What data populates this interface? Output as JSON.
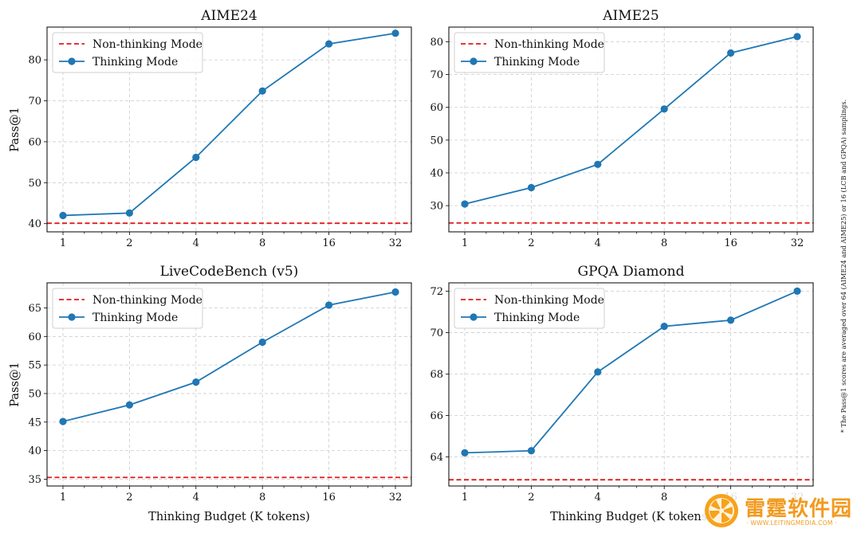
{
  "figure": {
    "footnote": "* The Pass@1 scores are averaged over 64 (AIME24 and AIME25) or 16 (LCB and GPQA) samplings.",
    "colors": {
      "thinking": "#1f77b4",
      "non_thinking": "#e31a1c",
      "grid": "#cccccc"
    }
  },
  "watermark": {
    "text_cn": "雷霆软件园",
    "text_en": "· WWW.LEITINGMEDIA.COM ·"
  },
  "chart_data": [
    {
      "type": "line",
      "title": "AIME24",
      "xlabel": "",
      "ylabel": "Pass@1",
      "x": [
        "1",
        "2",
        "4",
        "8",
        "16",
        "32"
      ],
      "x_scale": "log2",
      "ylim": [
        38,
        88
      ],
      "yticks": [
        40,
        50,
        60,
        70,
        80
      ],
      "grid": true,
      "legend": "top-left",
      "series": [
        {
          "name": "Non-thinking Mode",
          "kind": "hline",
          "value": 40.1,
          "style": "dashed",
          "color": "#e31a1c"
        },
        {
          "name": "Thinking Mode",
          "kind": "line",
          "values": [
            42.0,
            42.6,
            56.2,
            72.4,
            83.9,
            86.5
          ],
          "color": "#1f77b4"
        }
      ]
    },
    {
      "type": "line",
      "title": "AIME25",
      "xlabel": "",
      "ylabel": "",
      "x": [
        "1",
        "2",
        "4",
        "8",
        "16",
        "32"
      ],
      "x_scale": "log2",
      "ylim": [
        22,
        84.5
      ],
      "yticks": [
        30,
        40,
        50,
        60,
        70,
        80
      ],
      "grid": true,
      "legend": "top-left",
      "series": [
        {
          "name": "Non-thinking Mode",
          "kind": "hline",
          "value": 24.7,
          "style": "dashed",
          "color": "#e31a1c"
        },
        {
          "name": "Thinking Mode",
          "kind": "line",
          "values": [
            30.5,
            35.5,
            42.6,
            59.5,
            76.6,
            81.6
          ],
          "color": "#1f77b4"
        }
      ]
    },
    {
      "type": "line",
      "title": "LiveCodeBench (v5)",
      "xlabel": "Thinking Budget (K tokens)",
      "ylabel": "Pass@1",
      "x": [
        "1",
        "2",
        "4",
        "8",
        "16",
        "32"
      ],
      "x_scale": "log2",
      "ylim": [
        33.8,
        69.4
      ],
      "yticks": [
        35,
        40,
        45,
        50,
        55,
        60,
        65
      ],
      "grid": true,
      "legend": "top-left",
      "series": [
        {
          "name": "Non-thinking Mode",
          "kind": "hline",
          "value": 35.3,
          "style": "dashed",
          "color": "#e31a1c"
        },
        {
          "name": "Thinking Mode",
          "kind": "line",
          "values": [
            45.1,
            48.0,
            52.0,
            59.0,
            65.5,
            67.8
          ],
          "color": "#1f77b4"
        }
      ]
    },
    {
      "type": "line",
      "title": "GPQA Diamond",
      "xlabel": "Thinking Budget (K tokens)",
      "ylabel": "",
      "x": [
        "1",
        "2",
        "4",
        "8",
        "16",
        "32"
      ],
      "x_scale": "log2",
      "ylim": [
        62.6,
        72.4
      ],
      "yticks": [
        64,
        66,
        68,
        70,
        72
      ],
      "grid": true,
      "legend": "top-left",
      "series": [
        {
          "name": "Non-thinking Mode",
          "kind": "hline",
          "value": 62.9,
          "style": "dashed",
          "color": "#e31a1c"
        },
        {
          "name": "Thinking Mode",
          "kind": "line",
          "values": [
            64.2,
            64.3,
            68.1,
            70.3,
            70.6,
            72.0
          ],
          "color": "#1f77b4"
        }
      ]
    }
  ]
}
